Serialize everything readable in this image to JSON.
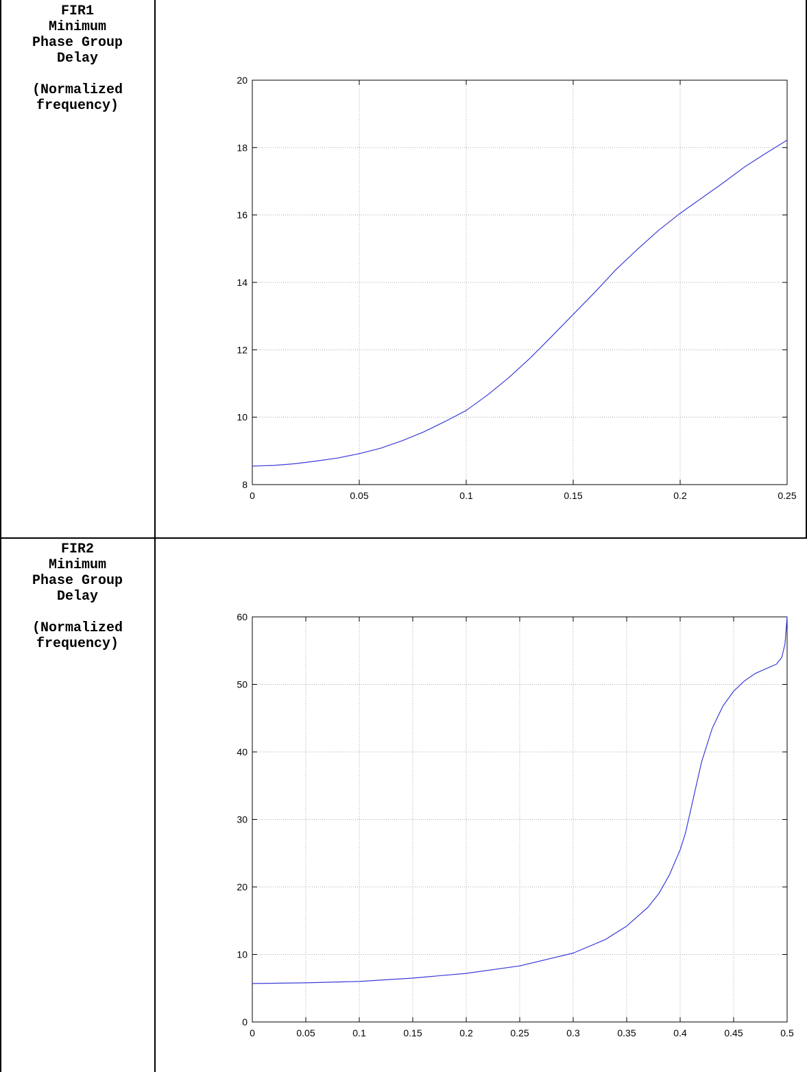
{
  "rows": [
    {
      "label": "FIR1\nMinimum\nPhase Group\nDelay\n\n(Normalized\nfrequency)"
    },
    {
      "label": "FIR2\nMinimum\nPhase Group\nDelay\n\n(Normalized\nfrequency)"
    }
  ],
  "colors": {
    "line": "#3a3ad8",
    "grid": "#a8a8a8",
    "axis": "#000000"
  },
  "chart_data": [
    {
      "type": "line",
      "title": "",
      "xlabel": "",
      "ylabel": "",
      "xlim": [
        0,
        0.25
      ],
      "ylim": [
        8,
        20
      ],
      "xticks": [
        0,
        0.05,
        0.1,
        0.15,
        0.2,
        0.25
      ],
      "xtick_labels": [
        "0",
        "0.05",
        "0.1",
        "0.15",
        "0.2",
        "0.25"
      ],
      "yticks": [
        8,
        10,
        12,
        14,
        16,
        18,
        20
      ],
      "ytick_labels": [
        "8",
        "10",
        "12",
        "14",
        "16",
        "18",
        "20"
      ],
      "grid": true,
      "x": [
        0,
        0.01,
        0.02,
        0.03,
        0.04,
        0.05,
        0.06,
        0.07,
        0.08,
        0.09,
        0.1,
        0.11,
        0.12,
        0.13,
        0.14,
        0.15,
        0.16,
        0.17,
        0.18,
        0.19,
        0.2,
        0.21,
        0.22,
        0.23,
        0.24,
        0.25
      ],
      "series": [
        {
          "values": [
            8.55,
            8.57,
            8.62,
            8.7,
            8.79,
            8.92,
            9.08,
            9.3,
            9.56,
            9.87,
            10.2,
            10.66,
            11.18,
            11.76,
            12.4,
            13.05,
            13.7,
            14.38,
            14.98,
            15.55,
            16.05,
            16.5,
            16.95,
            17.42,
            17.83,
            18.22
          ]
        }
      ]
    },
    {
      "type": "line",
      "title": "",
      "xlabel": "",
      "ylabel": "",
      "xlim": [
        0,
        0.5
      ],
      "ylim": [
        0,
        60
      ],
      "xticks": [
        0,
        0.05,
        0.1,
        0.15,
        0.2,
        0.25,
        0.3,
        0.35,
        0.4,
        0.45,
        0.5
      ],
      "xtick_labels": [
        "0",
        "0.05",
        "0.1",
        "0.15",
        "0.2",
        "0.25",
        "0.3",
        "0.35",
        "0.4",
        "0.45",
        "0.5"
      ],
      "yticks": [
        0,
        10,
        20,
        30,
        40,
        50,
        60
      ],
      "ytick_labels": [
        "0",
        "10",
        "20",
        "30",
        "40",
        "50",
        "60"
      ],
      "grid": true,
      "x": [
        0,
        0.05,
        0.1,
        0.15,
        0.2,
        0.25,
        0.3,
        0.33,
        0.35,
        0.37,
        0.38,
        0.39,
        0.4,
        0.405,
        0.41,
        0.415,
        0.42,
        0.43,
        0.44,
        0.45,
        0.46,
        0.47,
        0.48,
        0.49,
        0.495,
        0.498,
        0.5
      ],
      "series": [
        {
          "values": [
            5.7,
            5.8,
            6.0,
            6.5,
            7.2,
            8.3,
            10.2,
            12.2,
            14.2,
            17.0,
            19.0,
            21.8,
            25.5,
            28.0,
            31.5,
            35.0,
            38.5,
            43.5,
            46.8,
            49.0,
            50.5,
            51.6,
            52.3,
            53.0,
            54.0,
            56.0,
            60.0
          ]
        }
      ]
    }
  ]
}
